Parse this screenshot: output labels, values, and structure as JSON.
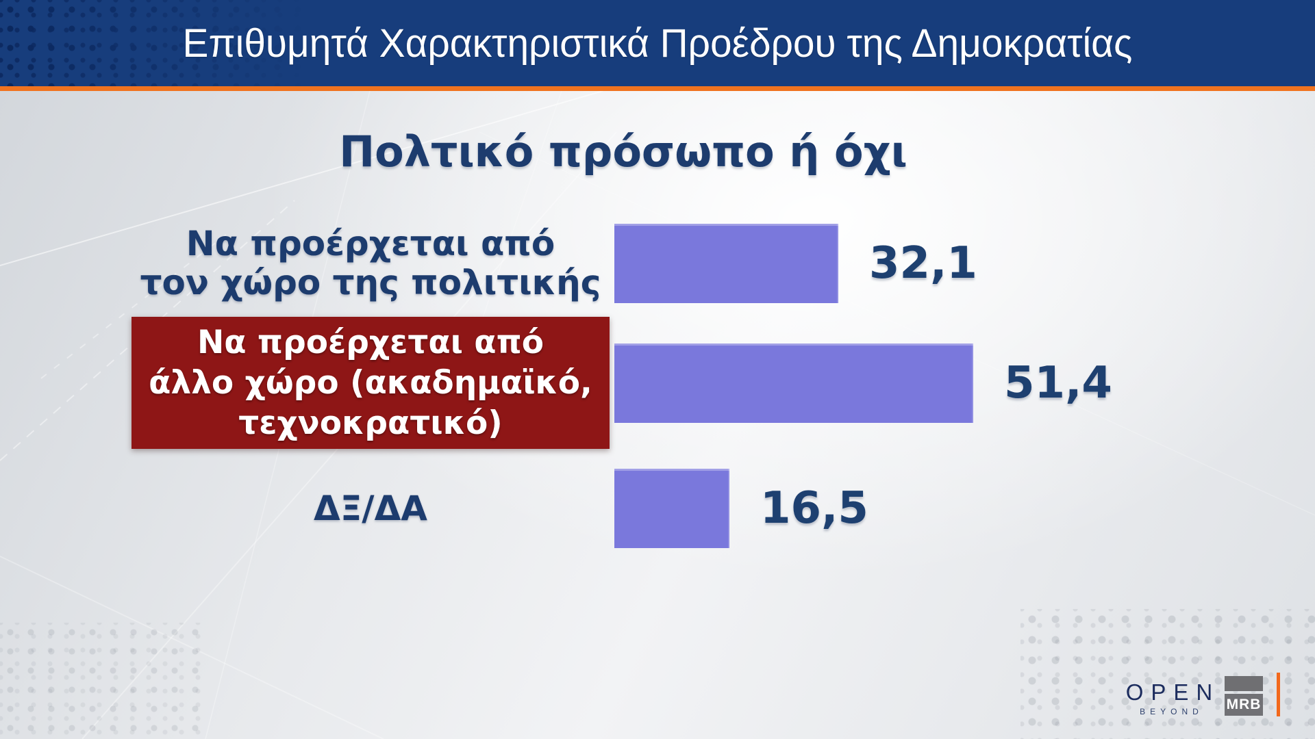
{
  "header": {
    "title": "Επιθυμητά Χαρακτηριστικά Προέδρου της Δημοκρατίας"
  },
  "chart_data": {
    "type": "bar",
    "orientation": "horizontal",
    "title": "Πολτικό πρόσωπο ή όχι",
    "categories": [
      "Να προέρχεται από τον χώρο της πολιτικής",
      "Να προέρχεται από άλλο χώρο (ακαδημαϊκό, τεχνοκρατικό)",
      "ΔΞ/ΔΑ"
    ],
    "values": [
      32.1,
      51.4,
      16.5
    ],
    "value_labels": [
      "32,1",
      "51,4",
      "16,5"
    ],
    "unit": "percent",
    "highlighted_category_index": 1,
    "xlim": [
      0,
      60
    ],
    "grid": false,
    "legend": false,
    "bar_color": "#7a78dc",
    "highlight_box_color": "#8e1616",
    "text_color": "#1d3c6e"
  },
  "rows": [
    {
      "label_lines": [
        "Να προέρχεται από",
        "τον χώρο της πολιτικής"
      ],
      "value": "32,1",
      "highlighted": false
    },
    {
      "label_lines": [
        "Να προέρχεται από",
        "άλλο χώρο (ακαδημαϊκό,",
        "τεχνοκρατικό)"
      ],
      "value": "51,4",
      "highlighted": true
    },
    {
      "label_lines": [
        "ΔΞ/ΔΑ"
      ],
      "value": "16,5",
      "highlighted": false
    }
  ],
  "footer": {
    "open_logo": "OPEN",
    "open_sub": "BEYOND",
    "mrb_logo": "MRB"
  },
  "colors": {
    "header_bg": "#173d7c",
    "divider_orange": "#f0731f",
    "bar_purple": "#7a78dc",
    "highlight_red": "#8e1616",
    "navy_text": "#1d3c6e"
  }
}
